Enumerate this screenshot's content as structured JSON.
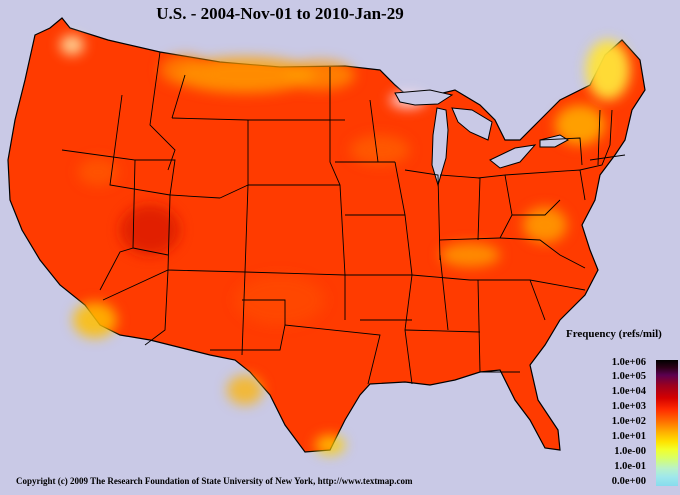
{
  "title": "U.S. - 2004-Nov-01 to 2010-Jan-29",
  "legend": {
    "title": "Frequency (refs/mil)",
    "ticks": [
      "1.0e+06",
      "1.0e+05",
      "1.0e+04",
      "1.0e+03",
      "1.0e+02",
      "1.0e+01",
      "1.0e-00",
      "1.0e-01",
      "0.0e+00"
    ]
  },
  "copyright": "Copyright (c) 2009 The Research Foundation of State University of New York, http://www.textmap.com",
  "colors": {
    "background": "#c9c9e6",
    "map_fill": "#ff3b00",
    "map_border": "#000000"
  }
}
